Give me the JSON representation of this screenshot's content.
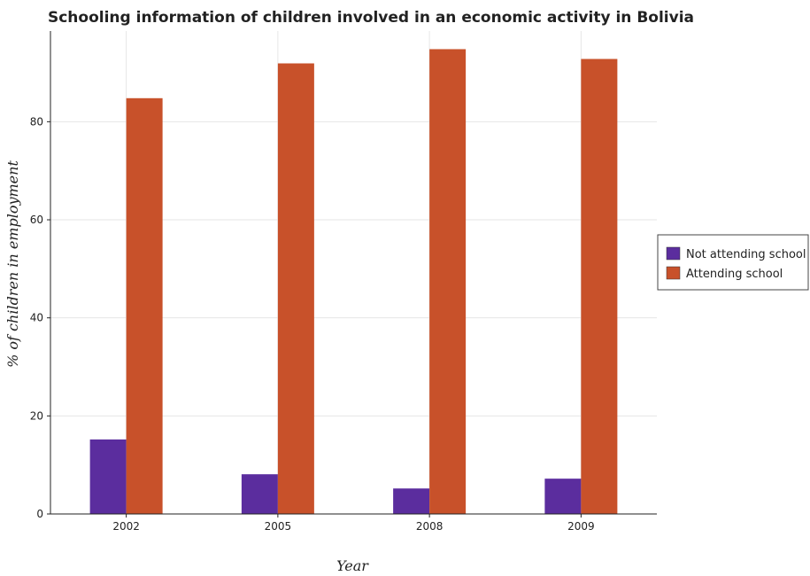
{
  "chart_data": {
    "type": "bar",
    "title": "Schooling information of children involved in an economic activity in Bolivia",
    "xlabel": "Year",
    "ylabel": "% of children in employment",
    "categories": [
      "2002",
      "2005",
      "2008",
      "2009"
    ],
    "series": [
      {
        "name": "Not attending school",
        "color": "#5b2d9e",
        "values": [
          15.2,
          8.1,
          5.2,
          7.2
        ]
      },
      {
        "name": "Attending school",
        "color": "#c8512a",
        "values": [
          84.8,
          91.9,
          94.8,
          92.8
        ]
      }
    ],
    "ylim": [
      0,
      98.5
    ],
    "yticks": [
      0,
      20,
      40,
      60,
      80
    ],
    "grid": true,
    "legend_position": "right"
  }
}
